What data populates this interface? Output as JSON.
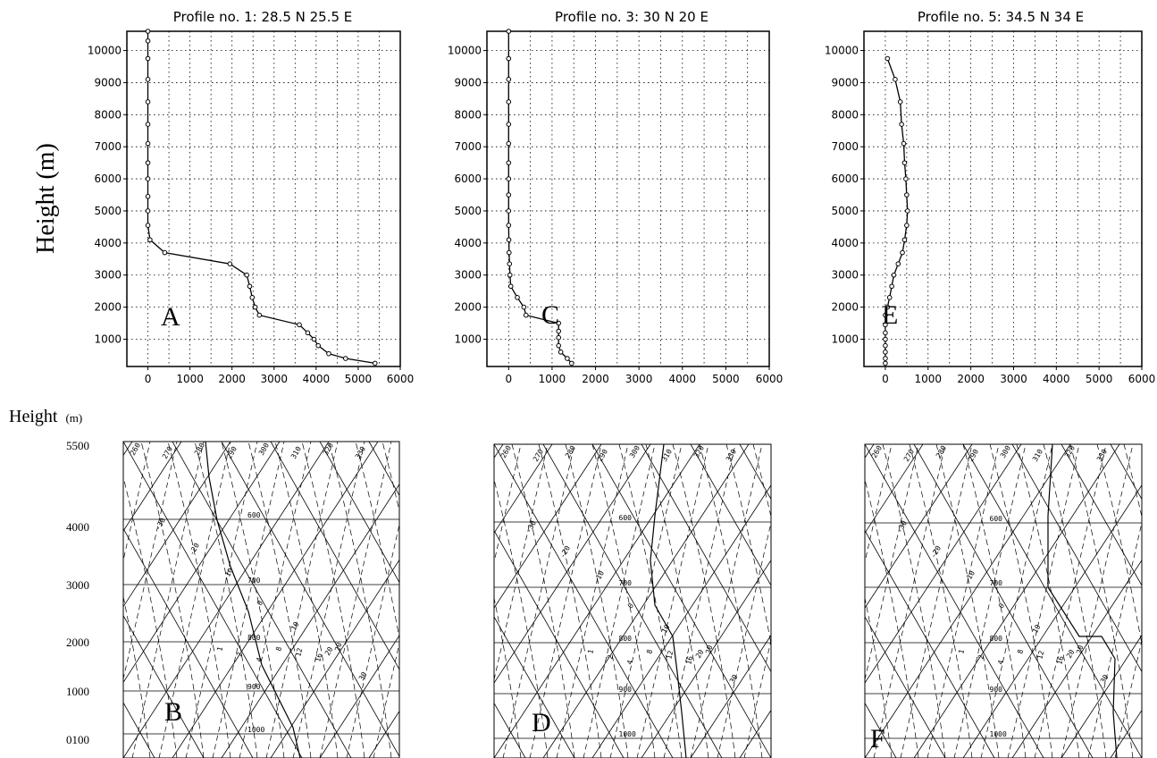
{
  "colors": {
    "ink": "#000000",
    "background": "#ffffff",
    "grid": "#000000"
  },
  "top_ylabel": "Height (m)",
  "bottom_ylabel": "Height",
  "bottom_ylabel_unit": "(m)",
  "chart_data": [
    {
      "type": "line",
      "panel_label": "A",
      "title": "Profile no. 1: 28.5 N   25.5 E",
      "xlim": [
        -500,
        6000
      ],
      "ylim": [
        150,
        10600
      ],
      "xticks": [
        0,
        1000,
        2000,
        3000,
        4000,
        5000,
        6000
      ],
      "yticks": [
        1000,
        2000,
        3000,
        4000,
        5000,
        6000,
        7000,
        8000,
        9000,
        10000
      ],
      "grid": true,
      "series": [
        {
          "x": [
            5400,
            4700,
            4300,
            4050,
            3950,
            3800,
            3600,
            2650,
            2550,
            2480,
            2420,
            2350,
            1950,
            400,
            50,
            0,
            0,
            0,
            0,
            0,
            0,
            0,
            0,
            0,
            0,
            0,
            0
          ],
          "y": [
            250,
            400,
            550,
            800,
            1000,
            1200,
            1450,
            1750,
            2000,
            2300,
            2650,
            3000,
            3350,
            3700,
            4100,
            4550,
            5000,
            5450,
            6000,
            6500,
            7100,
            7700,
            8400,
            9100,
            9750,
            10300,
            10600
          ]
        }
      ]
    },
    {
      "type": "line",
      "panel_label": "C",
      "title": "Profile no. 3: 30 N   20 E",
      "xlim": [
        -500,
        6000
      ],
      "ylim": [
        150,
        10600
      ],
      "xticks": [
        0,
        1000,
        2000,
        3000,
        4000,
        5000,
        6000
      ],
      "yticks": [
        1000,
        2000,
        3000,
        4000,
        5000,
        6000,
        7000,
        8000,
        9000,
        10000
      ],
      "grid": true,
      "series": [
        {
          "x": [
            1450,
            1350,
            1200,
            1150,
            1150,
            1150,
            1150,
            400,
            350,
            200,
            50,
            30,
            20,
            10,
            5,
            0,
            0,
            0,
            0,
            0,
            0,
            0,
            0,
            0,
            0,
            0
          ],
          "y": [
            250,
            400,
            600,
            800,
            1050,
            1250,
            1500,
            1750,
            2000,
            2300,
            2650,
            3000,
            3350,
            3700,
            4100,
            4550,
            5000,
            5500,
            6000,
            6500,
            7100,
            7700,
            8400,
            9100,
            9750,
            10600
          ]
        }
      ]
    },
    {
      "type": "line",
      "panel_label": "E",
      "title": "Profile no. 5: 34.5 N   34 E",
      "xlim": [
        -500,
        6000
      ],
      "ylim": [
        150,
        10600
      ],
      "xticks": [
        0,
        1000,
        2000,
        3000,
        4000,
        5000,
        6000
      ],
      "yticks": [
        1000,
        2000,
        3000,
        4000,
        5000,
        6000,
        7000,
        8000,
        9000,
        10000
      ],
      "grid": true,
      "series": [
        {
          "x": [
            0,
            0,
            0,
            0,
            0,
            0,
            0,
            0,
            50,
            100,
            150,
            200,
            300,
            400,
            450,
            500,
            520,
            500,
            480,
            450,
            430,
            380,
            350,
            230,
            50
          ],
          "y": [
            250,
            400,
            600,
            800,
            1000,
            1200,
            1450,
            1750,
            2000,
            2300,
            2650,
            3000,
            3350,
            3700,
            4100,
            4550,
            5000,
            5500,
            6000,
            6500,
            7100,
            7700,
            8400,
            9100,
            9750
          ]
        }
      ]
    },
    {
      "type": "sounding",
      "panel_label": "B",
      "y_tick_labels": [
        "5500",
        "4000",
        "3000",
        "2000",
        "1000",
        "0100"
      ],
      "pressure_labels": [
        "500",
        "600",
        "700",
        "800",
        "900",
        "1000"
      ],
      "isotherm_labels": [
        "-30",
        "-20",
        "-10",
        "0",
        "10",
        "20",
        "30"
      ],
      "adiabat_labels": [
        "260",
        "270",
        "280",
        "290",
        "300",
        "310",
        "320",
        "330"
      ],
      "mixing_ratio_labels": [
        "1",
        "2",
        "4",
        "8",
        "12",
        "16",
        "20"
      ]
    },
    {
      "type": "sounding",
      "panel_label": "D",
      "pressure_labels": [
        "500",
        "600",
        "700",
        "800",
        "900",
        "1000"
      ],
      "isotherm_labels": [
        "-30",
        "-20",
        "-10",
        "0",
        "10",
        "20",
        "30"
      ],
      "adiabat_labels": [
        "260",
        "270",
        "280",
        "290",
        "300",
        "310",
        "320",
        "330"
      ],
      "mixing_ratio_labels": [
        "1",
        "2",
        "4",
        "8",
        "12",
        "16",
        "20"
      ]
    },
    {
      "type": "sounding",
      "panel_label": "F",
      "pressure_labels": [
        "500",
        "600",
        "700",
        "800",
        "900",
        "1000"
      ],
      "isotherm_labels": [
        "-30",
        "-20",
        "-10",
        "0",
        "10",
        "20",
        "30"
      ],
      "adiabat_labels": [
        "260",
        "270",
        "280",
        "290",
        "300",
        "310",
        "320",
        "330"
      ],
      "mixing_ratio_labels": [
        "1",
        "2",
        "4",
        "8",
        "12",
        "16",
        "20"
      ]
    }
  ]
}
